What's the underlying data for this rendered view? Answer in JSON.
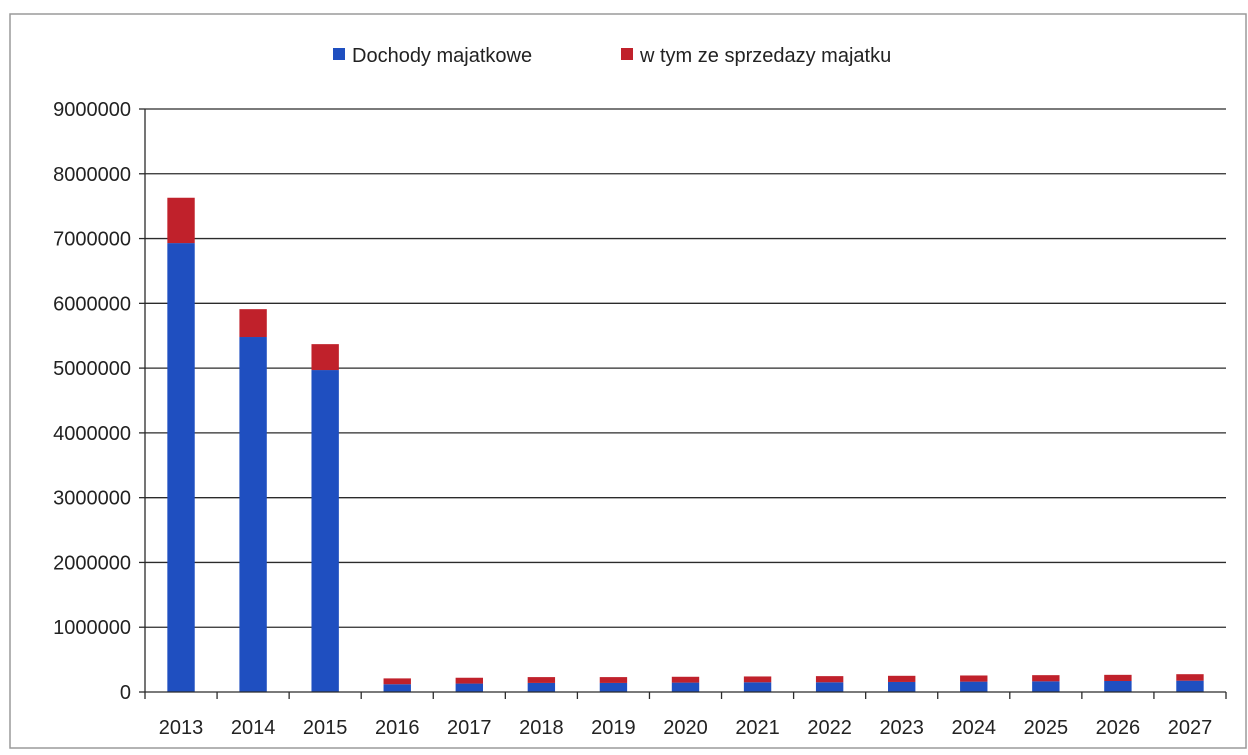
{
  "chart_data": {
    "type": "bar",
    "stacked": true,
    "title": "",
    "xlabel": "",
    "ylabel": "",
    "categories": [
      "2013",
      "2014",
      "2015",
      "2016",
      "2017",
      "2018",
      "2019",
      "2020",
      "2021",
      "2022",
      "2023",
      "2024",
      "2025",
      "2026",
      "2027"
    ],
    "series": [
      {
        "name": "Dochody majatkowe",
        "color": "#1f4fc0",
        "values": [
          6930000,
          5480000,
          4970000,
          120000,
          130000,
          140000,
          140000,
          145000,
          150000,
          150000,
          155000,
          160000,
          165000,
          170000,
          175000
        ]
      },
      {
        "name": "w tym ze sprzedazy majatku",
        "color": "#c0212b",
        "values": [
          700000,
          430000,
          400000,
          90000,
          90000,
          90000,
          90000,
          90000,
          90000,
          95000,
          95000,
          95000,
          95000,
          95000,
          100000
        ]
      }
    ],
    "ylim": [
      0,
      9000000
    ],
    "yticks": [
      0,
      1000000,
      2000000,
      3000000,
      4000000,
      5000000,
      6000000,
      7000000,
      8000000,
      9000000
    ],
    "ytick_labels": [
      "0",
      "1000000",
      "2000000",
      "3000000",
      "4000000",
      "5000000",
      "6000000",
      "7000000",
      "8000000",
      "9000000"
    ],
    "grid": true,
    "legend_position": "top-center"
  }
}
